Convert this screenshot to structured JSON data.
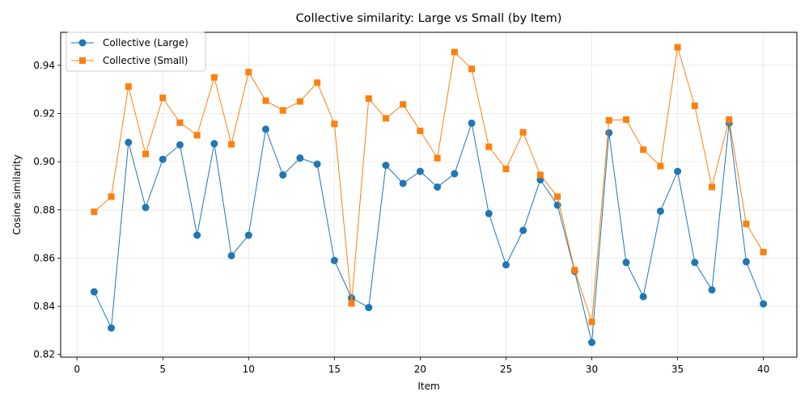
{
  "chart_data": {
    "type": "line",
    "title": "Collective similarity: Large vs Small (by Item)",
    "xlabel": "Item",
    "ylabel": "Cosine similarity",
    "xlim": [
      -0.95,
      41.95
    ],
    "ylim": [
      0.8189,
      0.9537
    ],
    "xticks": [
      0,
      5,
      10,
      15,
      20,
      25,
      30,
      35,
      40
    ],
    "yticks": [
      0.82,
      0.84,
      0.86,
      0.88,
      0.9,
      0.92,
      0.94
    ],
    "grid": true,
    "legend_position": "top-left",
    "x": [
      1,
      2,
      3,
      4,
      5,
      6,
      7,
      8,
      9,
      10,
      11,
      12,
      13,
      14,
      15,
      16,
      17,
      18,
      19,
      20,
      21,
      22,
      23,
      24,
      25,
      26,
      27,
      28,
      29,
      30,
      31,
      32,
      33,
      34,
      35,
      36,
      37,
      38,
      39,
      40
    ],
    "series": [
      {
        "name": "Collective (Large)",
        "color": "#1f77b4",
        "marker": "circle",
        "values": [
          0.846,
          0.831,
          0.908,
          0.881,
          0.901,
          0.907,
          0.8695,
          0.9075,
          0.861,
          0.8695,
          0.9135,
          0.8945,
          0.9015,
          0.899,
          0.859,
          0.8435,
          0.8395,
          0.8985,
          0.891,
          0.896,
          0.8895,
          0.895,
          0.916,
          0.8785,
          0.8572,
          0.8715,
          0.8925,
          0.882,
          0.8545,
          0.825,
          0.912,
          0.8582,
          0.844,
          0.8795,
          0.896,
          0.8582,
          0.8468,
          0.916,
          0.8585,
          0.841
        ]
      },
      {
        "name": "Collective (Small)",
        "color": "#ff7f0e",
        "marker": "square",
        "values": [
          0.8792,
          0.8855,
          0.9312,
          0.9032,
          0.9265,
          0.9162,
          0.911,
          0.935,
          0.9072,
          0.9372,
          0.9253,
          0.9213,
          0.925,
          0.9328,
          0.9157,
          0.8412,
          0.9262,
          0.918,
          0.9238,
          0.9128,
          0.9015,
          0.9455,
          0.9385,
          0.9062,
          0.897,
          0.9122,
          0.8945,
          0.8855,
          0.855,
          0.8335,
          0.9172,
          0.9175,
          0.905,
          0.8982,
          0.9475,
          0.9232,
          0.8895,
          0.9175,
          0.8742,
          0.8625
        ]
      }
    ]
  }
}
